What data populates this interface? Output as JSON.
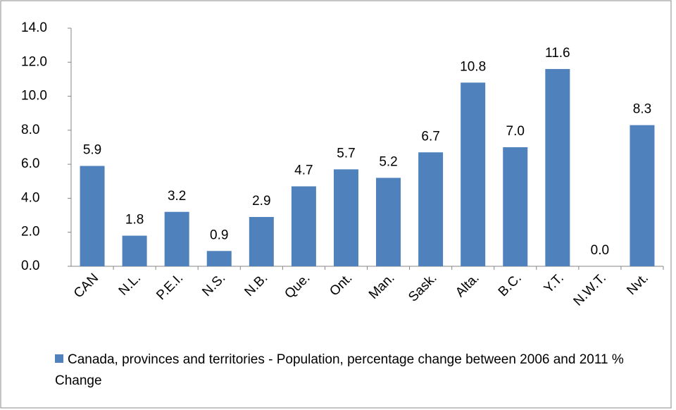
{
  "chart_data": {
    "type": "bar",
    "categories": [
      "CAN",
      "N.L.",
      "P.E.I.",
      "N.S.",
      "N.B.",
      "Que.",
      "Ont.",
      "Man.",
      "Sask.",
      "Alta.",
      "B.C.",
      "Y.T.",
      "N.W.T.",
      "Nvt."
    ],
    "series": [
      {
        "name": "Canada, provinces and territories - Population, percentage change between 2006 and 2011 % Change",
        "color": "#4f81bd",
        "values": [
          5.9,
          1.8,
          3.2,
          0.9,
          2.9,
          4.7,
          5.7,
          5.2,
          6.7,
          10.8,
          7.0,
          11.6,
          0.0,
          8.3
        ],
        "value_labels": [
          "5.9",
          "1.8",
          "3.2",
          "0.9",
          "2.9",
          "4.7",
          "5.7",
          "5.2",
          "6.7",
          "10.8",
          "7.0",
          "11.6",
          "0.0",
          "8.3"
        ]
      }
    ],
    "ylim": [
      0,
      14
    ],
    "yticks": [
      {
        "value": 0,
        "label": "0.0"
      },
      {
        "value": 2,
        "label": "2.0"
      },
      {
        "value": 4,
        "label": "4.0"
      },
      {
        "value": 6,
        "label": "6.0"
      },
      {
        "value": 8,
        "label": "8.0"
      },
      {
        "value": 10,
        "label": "10.0"
      },
      {
        "value": 12,
        "label": "12.0"
      },
      {
        "value": 14,
        "label": "14.0"
      }
    ],
    "grid": false,
    "legend": "bottom"
  }
}
